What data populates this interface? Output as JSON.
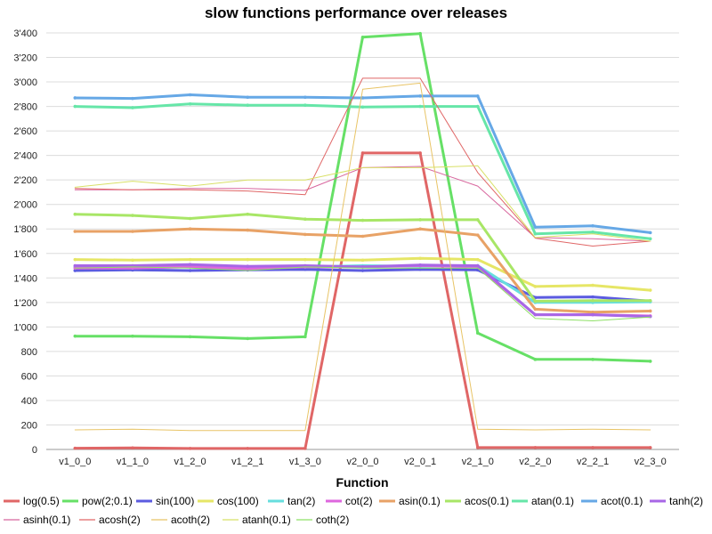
{
  "chart_data": {
    "type": "line",
    "title": "slow functions performance over releases",
    "xlabel": "Function",
    "ylabel": "",
    "ylim": [
      0,
      3400
    ],
    "yticks": [
      "0",
      "200",
      "400",
      "600",
      "800",
      "1'000",
      "1'200",
      "1'400",
      "1'600",
      "1'800",
      "2'000",
      "2'200",
      "2'400",
      "2'600",
      "2'800",
      "3'000",
      "3'200",
      "3'400"
    ],
    "grid": true,
    "legend_position": "bottom",
    "categories": [
      "v1_0_0",
      "v1_1_0",
      "v1_2_0",
      "v1_2_1",
      "v1_3_0",
      "v2_0_0",
      "v2_0_1",
      "v2_1_0",
      "v2_2_0",
      "v2_2_1",
      "v2_3_0"
    ],
    "series": [
      {
        "name": "log(0.5)",
        "color": "#e06666",
        "width": "thick",
        "values": [
          10,
          12,
          8,
          8,
          8,
          2420,
          2420,
          15,
          15,
          15,
          15
        ]
      },
      {
        "name": "pow(2;0.1)",
        "color": "#66e066",
        "width": "thick",
        "values": [
          925,
          925,
          920,
          905,
          920,
          3365,
          3395,
          950,
          735,
          735,
          720
        ]
      },
      {
        "name": "sin(100)",
        "color": "#5b5be0",
        "width": "thick",
        "values": [
          1460,
          1465,
          1460,
          1465,
          1470,
          1460,
          1470,
          1465,
          1240,
          1245,
          1210
        ]
      },
      {
        "name": "cos(100)",
        "color": "#e6e666",
        "width": "thick",
        "values": [
          1550,
          1545,
          1550,
          1550,
          1550,
          1545,
          1560,
          1550,
          1330,
          1340,
          1300
        ]
      },
      {
        "name": "tan(2)",
        "color": "#66dede",
        "width": "thick",
        "values": [
          1490,
          1490,
          1500,
          1480,
          1490,
          1500,
          1495,
          1500,
          1200,
          1200,
          1205
        ]
      },
      {
        "name": "cot(2)",
        "color": "#de66de",
        "width": "thick",
        "values": [
          1480,
          1480,
          1490,
          1475,
          1490,
          1490,
          1500,
          1490,
          1100,
          1100,
          1090
        ]
      },
      {
        "name": "asin(0.1)",
        "color": "#e8a266",
        "width": "thick",
        "values": [
          1780,
          1780,
          1800,
          1790,
          1755,
          1740,
          1800,
          1750,
          1145,
          1120,
          1130
        ]
      },
      {
        "name": "acos(0.1)",
        "color": "#a8e666",
        "width": "thick",
        "values": [
          1920,
          1910,
          1885,
          1920,
          1880,
          1870,
          1875,
          1875,
          1210,
          1215,
          1215
        ]
      },
      {
        "name": "atan(0.1)",
        "color": "#66e6a8",
        "width": "thick",
        "values": [
          2800,
          2790,
          2820,
          2810,
          2810,
          2795,
          2800,
          2800,
          1760,
          1775,
          1720
        ]
      },
      {
        "name": "acot(0.1)",
        "color": "#66a8e6",
        "width": "thick",
        "values": [
          2870,
          2865,
          2895,
          2875,
          2875,
          2870,
          2885,
          2885,
          1815,
          1825,
          1770
        ]
      },
      {
        "name": "tanh(2)",
        "color": "#a866e6",
        "width": "thick",
        "values": [
          1500,
          1500,
          1510,
          1495,
          1500,
          1490,
          1505,
          1500,
          1100,
          1100,
          1085
        ]
      },
      {
        "name": "asinh(0.1)",
        "color": "#d8669e",
        "width": "thin",
        "values": [
          2120,
          2120,
          2130,
          2130,
          2115,
          2300,
          2310,
          2150,
          1730,
          1720,
          1700
        ]
      },
      {
        "name": "acosh(2)",
        "color": "#e06666",
        "width": "thin",
        "values": [
          2130,
          2120,
          2120,
          2110,
          2080,
          3030,
          3030,
          2260,
          1725,
          1660,
          1700
        ]
      },
      {
        "name": "acoth(2)",
        "color": "#e8c466",
        "width": "thin",
        "values": [
          160,
          165,
          155,
          155,
          155,
          2940,
          2990,
          165,
          160,
          165,
          160
        ]
      },
      {
        "name": "atanh(0.1)",
        "color": "#d8e066",
        "width": "thin",
        "values": [
          2140,
          2190,
          2150,
          2200,
          2200,
          2300,
          2300,
          2315,
          1730,
          1760,
          1700
        ]
      },
      {
        "name": "coth(2)",
        "color": "#8ee066",
        "width": "thin",
        "values": [
          1480,
          1490,
          1480,
          1460,
          1490,
          1480,
          1480,
          1480,
          1070,
          1050,
          1080
        ]
      }
    ]
  }
}
